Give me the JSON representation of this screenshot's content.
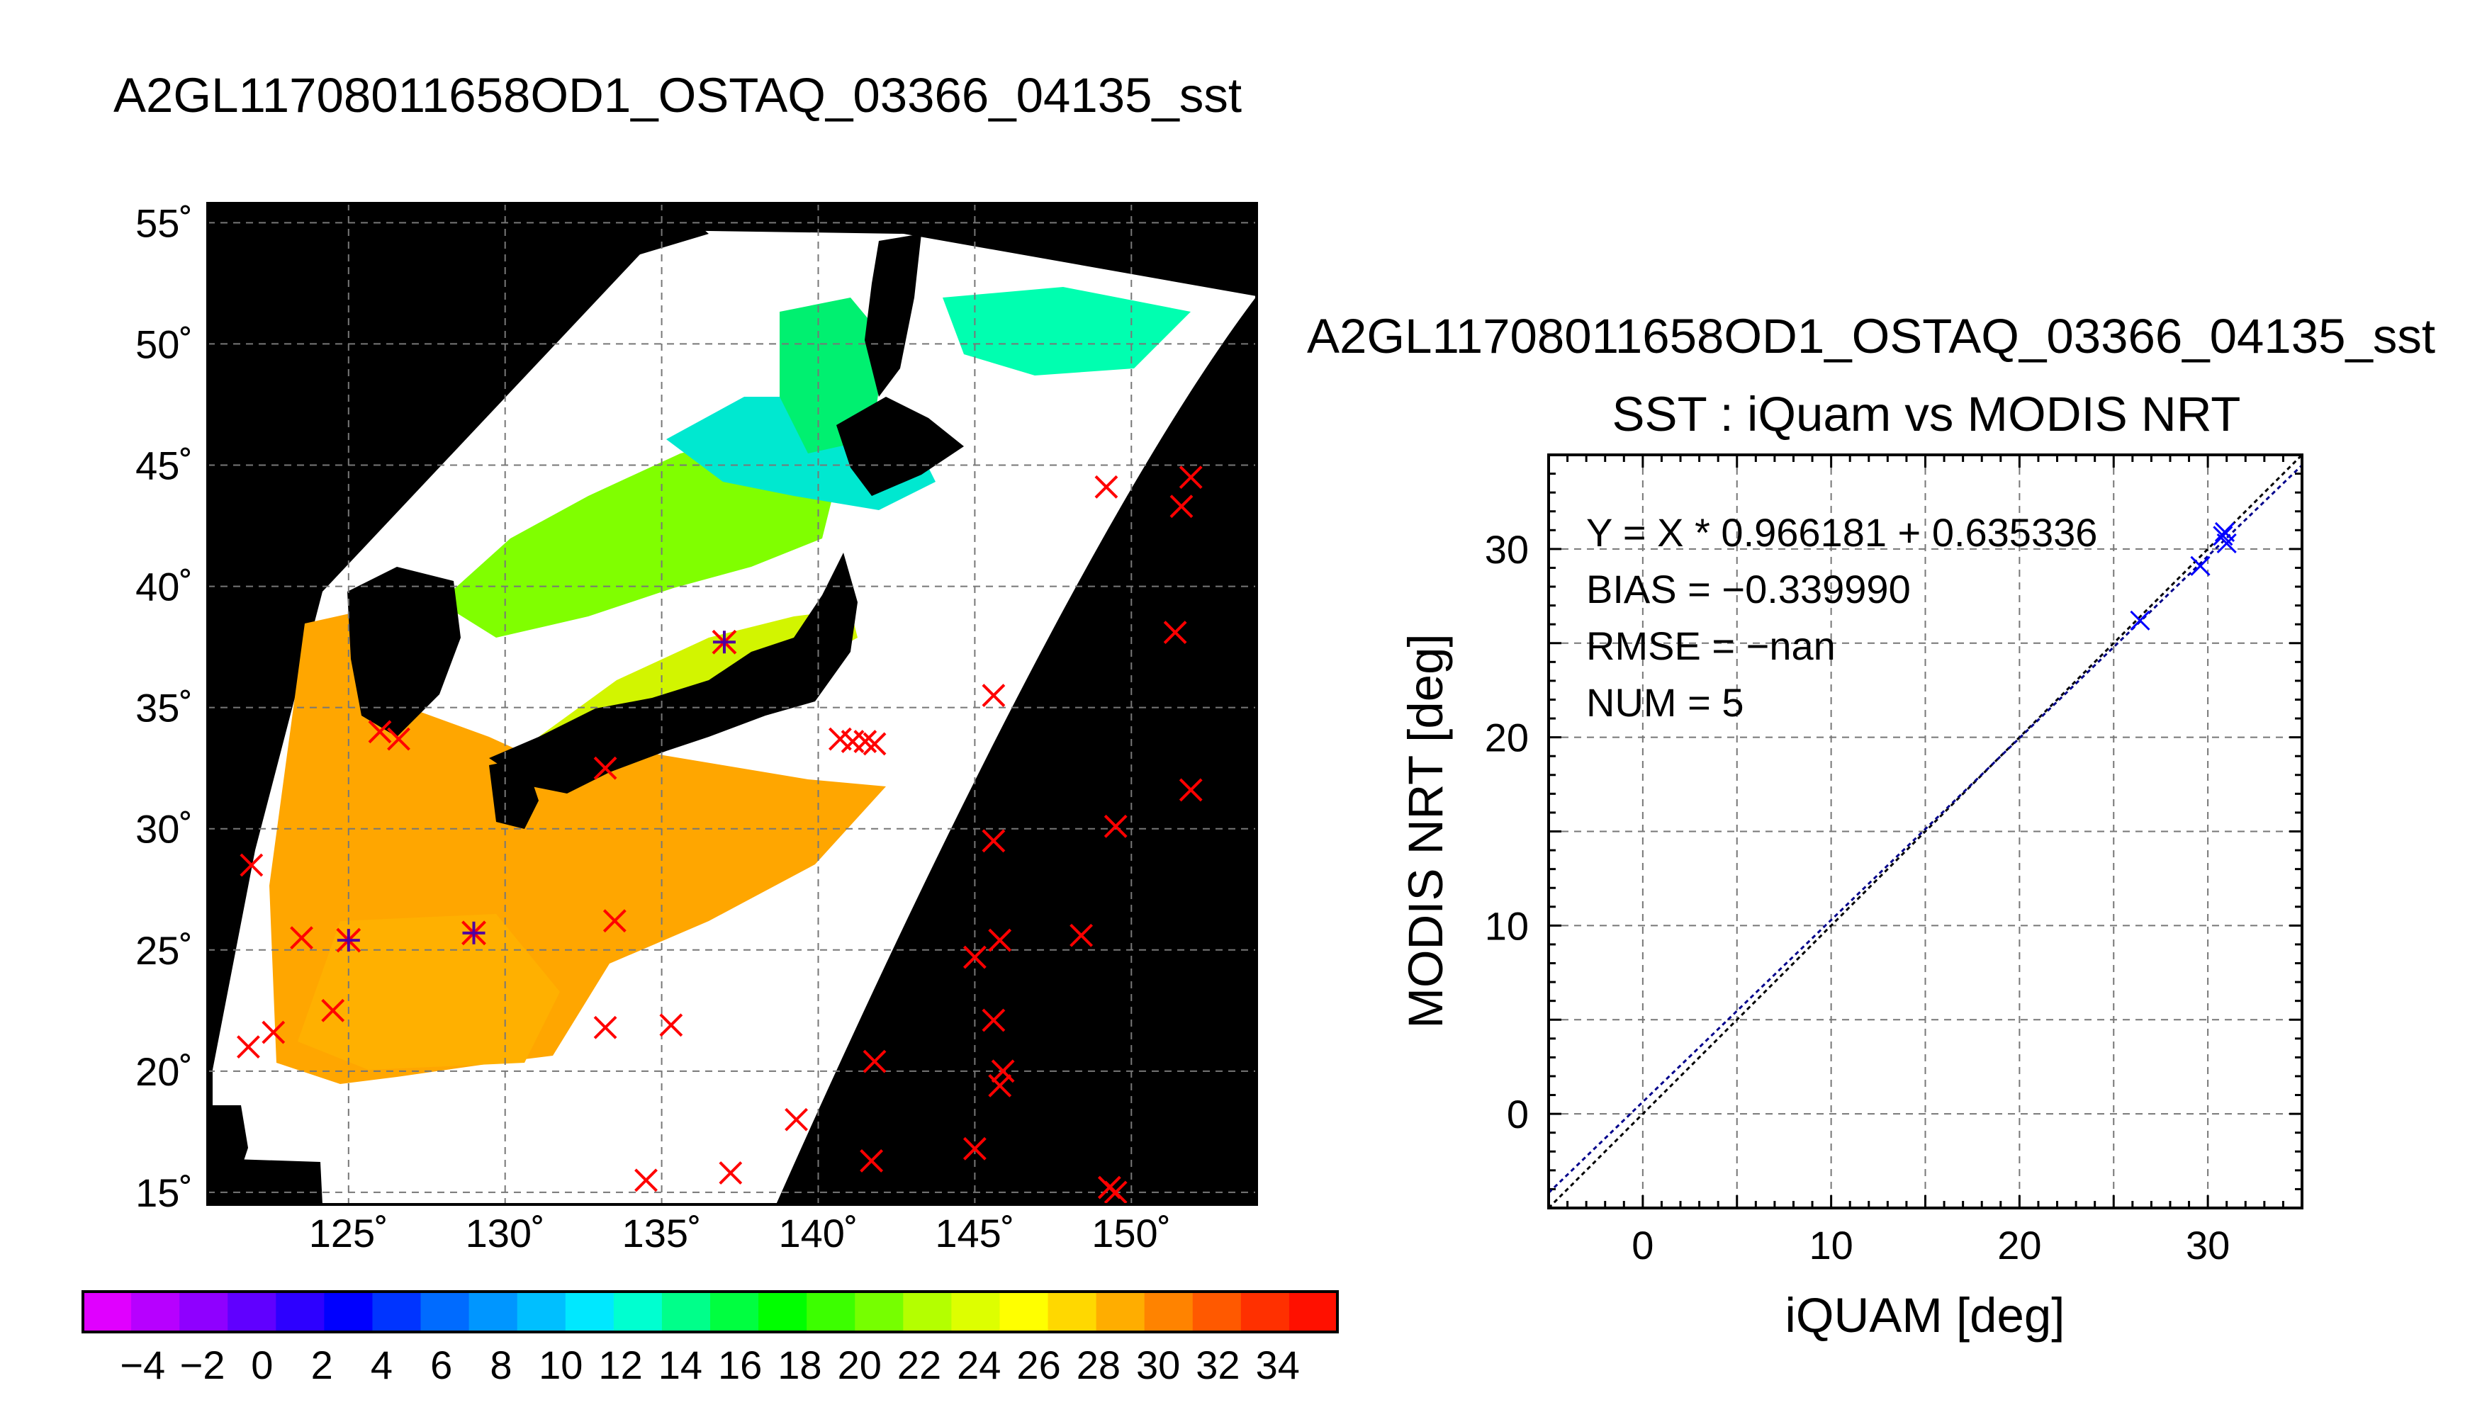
{
  "map": {
    "title": "A2GL11708011658OD1_OSTAQ_03366_04135_sst",
    "lon_ticks": [
      125,
      130,
      135,
      140,
      145,
      150
    ],
    "lat_ticks": [
      15,
      20,
      25,
      30,
      35,
      40,
      45,
      50,
      55
    ],
    "lon_range": [
      120.5,
      154
    ],
    "lat_range": [
      14.5,
      55.8
    ],
    "degree_symbol": "˚",
    "background_color": "#000000",
    "red_markers": [
      [
        121.8,
        21.0
      ],
      [
        122.6,
        21.6
      ],
      [
        121.9,
        28.5
      ],
      [
        123.5,
        25.5
      ],
      [
        124.5,
        22.5
      ],
      [
        126.0,
        34.0
      ],
      [
        126.6,
        33.7
      ],
      [
        133.2,
        32.5
      ],
      [
        133.5,
        26.2
      ],
      [
        133.2,
        21.8
      ],
      [
        135.3,
        21.9
      ],
      [
        134.5,
        15.5
      ],
      [
        137.2,
        15.8
      ],
      [
        139.3,
        18.0
      ],
      [
        140.7,
        33.7
      ],
      [
        141.1,
        33.6
      ],
      [
        141.5,
        33.6
      ],
      [
        141.8,
        33.5
      ],
      [
        141.8,
        20.4
      ],
      [
        141.7,
        16.3
      ],
      [
        145.6,
        35.5
      ],
      [
        145.6,
        29.5
      ],
      [
        145.8,
        25.4
      ],
      [
        145.0,
        24.7
      ],
      [
        145.6,
        22.1
      ],
      [
        145.9,
        20.0
      ],
      [
        145.8,
        19.4
      ],
      [
        145.0,
        16.8
      ],
      [
        148.4,
        25.6
      ],
      [
        149.2,
        44.1
      ],
      [
        149.5,
        30.1
      ],
      [
        149.3,
        15.2
      ],
      [
        149.5,
        15.0
      ],
      [
        151.4,
        38.1
      ],
      [
        151.6,
        43.3
      ],
      [
        151.9,
        44.5
      ],
      [
        151.9,
        31.6
      ]
    ],
    "star_markers": [
      [
        125.0,
        25.4
      ],
      [
        129.0,
        25.7
      ],
      [
        137.0,
        37.7
      ]
    ]
  },
  "colorbar": {
    "tick_labels": [
      "−4",
      "−2",
      "0",
      "2",
      "4",
      "6",
      "8",
      "10",
      "12",
      "14",
      "16",
      "18",
      "20",
      "22",
      "24",
      "26",
      "28",
      "30",
      "32",
      "34"
    ],
    "colors": [
      "#e000ff",
      "#b700ff",
      "#8f00ff",
      "#6000ff",
      "#2d00ff",
      "#0000ff",
      "#0034ff",
      "#006bff",
      "#0096ff",
      "#00bfff",
      "#00e8ff",
      "#00ffd0",
      "#00ff8a",
      "#00ff40",
      "#00ff00",
      "#3cff00",
      "#76ff00",
      "#b4ff00",
      "#ddff00",
      "#ffff00",
      "#ffd800",
      "#ffad00",
      "#ff8300",
      "#ff5900",
      "#ff3000",
      "#ff1000"
    ]
  },
  "scatter_title": "A2GL11708011658OD1_OSTAQ_03366_04135_sst",
  "chart_data": {
    "type": "scatter",
    "title": "SST : iQuam vs MODIS NRT",
    "xlabel": "iQUAM [deg]",
    "ylabel": "MODIS NRT [deg]",
    "xlim": [
      -5,
      35
    ],
    "ylim": [
      -5,
      35
    ],
    "xticks": [
      0,
      10,
      20,
      30
    ],
    "yticks": [
      0,
      10,
      20,
      30
    ],
    "grid": true,
    "points": [
      [
        26.4,
        26.2
      ],
      [
        29.6,
        29.1
      ],
      [
        30.8,
        30.7
      ],
      [
        31.0,
        30.3
      ],
      [
        30.9,
        30.9
      ]
    ],
    "fit": {
      "slope": 0.966181,
      "intercept": 0.635336
    },
    "stats": [
      "Y = X * 0.966181 + 0.635336",
      "BIAS = −0.339990",
      "RMSE = −nan",
      "NUM = 5"
    ],
    "point_color": "#0000ff",
    "fit_color": "#00008b"
  }
}
